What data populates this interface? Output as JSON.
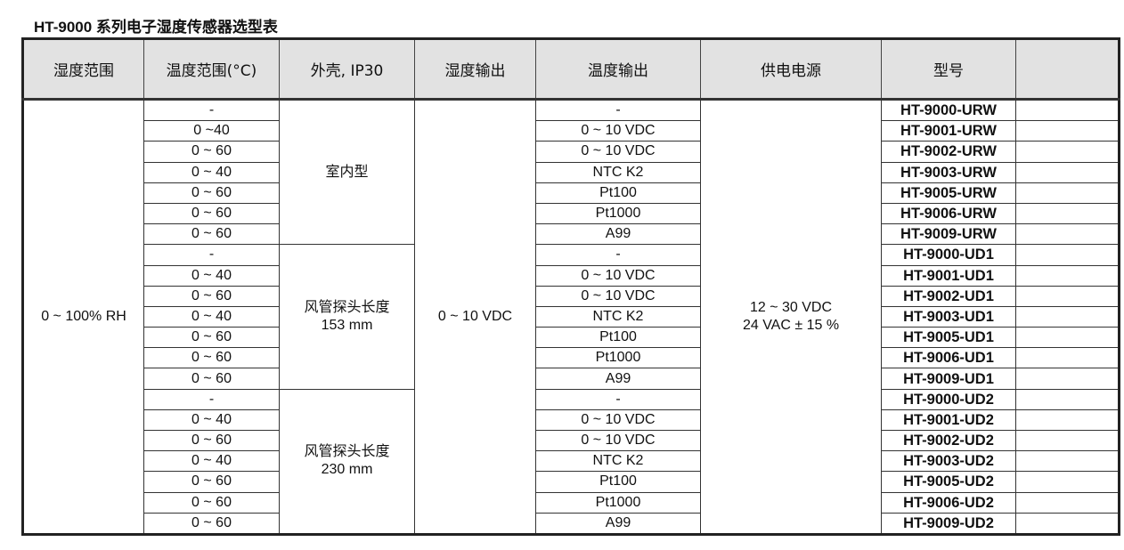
{
  "title": "HT-9000 系列电子湿度传感器选型表",
  "headers": [
    "湿度范围",
    "温度范围(°C)",
    "外壳, IP30",
    "湿度输出",
    "温度输出",
    "供电电源",
    "型号",
    ""
  ],
  "humidity_range": "0 ~ 100% RH",
  "humidity_output": "0 ~ 10 VDC",
  "power_supply": [
    "12 ~ 30 VDC",
    "24 VAC ± 15 %"
  ],
  "housings": [
    {
      "line1": "室内型",
      "line2": ""
    },
    {
      "line1": "风管探头长度",
      "line2": "153 mm"
    },
    {
      "line1": "风管探头长度",
      "line2": "230 mm"
    }
  ],
  "rows": [
    {
      "temp_range": "-",
      "temp_output": "-",
      "model": "HT-9000-URW"
    },
    {
      "temp_range": "0 ~40",
      "temp_output": "0 ~ 10 VDC",
      "model": "HT-9001-URW"
    },
    {
      "temp_range": "0 ~ 60",
      "temp_output": "0 ~ 10 VDC",
      "model": "HT-9002-URW"
    },
    {
      "temp_range": "0 ~ 40",
      "temp_output": "NTC K2",
      "model": "HT-9003-URW"
    },
    {
      "temp_range": "0 ~ 60",
      "temp_output": "Pt100",
      "model": "HT-9005-URW"
    },
    {
      "temp_range": "0 ~ 60",
      "temp_output": "Pt1000",
      "model": "HT-9006-URW"
    },
    {
      "temp_range": "0 ~ 60",
      "temp_output": "A99",
      "model": "HT-9009-URW"
    },
    {
      "temp_range": "-",
      "temp_output": "-",
      "model": "HT-9000-UD1"
    },
    {
      "temp_range": "0 ~ 40",
      "temp_output": "0 ~ 10 VDC",
      "model": "HT-9001-UD1"
    },
    {
      "temp_range": "0 ~ 60",
      "temp_output": "0 ~ 10 VDC",
      "model": "HT-9002-UD1"
    },
    {
      "temp_range": "0 ~ 40",
      "temp_output": "NTC K2",
      "model": "HT-9003-UD1"
    },
    {
      "temp_range": "0 ~ 60",
      "temp_output": "Pt100",
      "model": "HT-9005-UD1"
    },
    {
      "temp_range": "0 ~ 60",
      "temp_output": "Pt1000",
      "model": "HT-9006-UD1"
    },
    {
      "temp_range": "0 ~ 60",
      "temp_output": "A99",
      "model": "HT-9009-UD1"
    },
    {
      "temp_range": "-",
      "temp_output": "-",
      "model": "HT-9000-UD2"
    },
    {
      "temp_range": "0 ~ 40",
      "temp_output": "0 ~ 10 VDC",
      "model": "HT-9001-UD2"
    },
    {
      "temp_range": "0 ~ 60",
      "temp_output": "0 ~ 10 VDC",
      "model": "HT-9002-UD2"
    },
    {
      "temp_range": "0 ~ 40",
      "temp_output": "NTC K2",
      "model": "HT-9003-UD2"
    },
    {
      "temp_range": "0 ~ 60",
      "temp_output": "Pt100",
      "model": "HT-9005-UD2"
    },
    {
      "temp_range": "0 ~ 60",
      "temp_output": "Pt1000",
      "model": "HT-9006-UD2"
    },
    {
      "temp_range": "0 ~ 60",
      "temp_output": "A99",
      "model": "HT-9009-UD2"
    }
  ]
}
